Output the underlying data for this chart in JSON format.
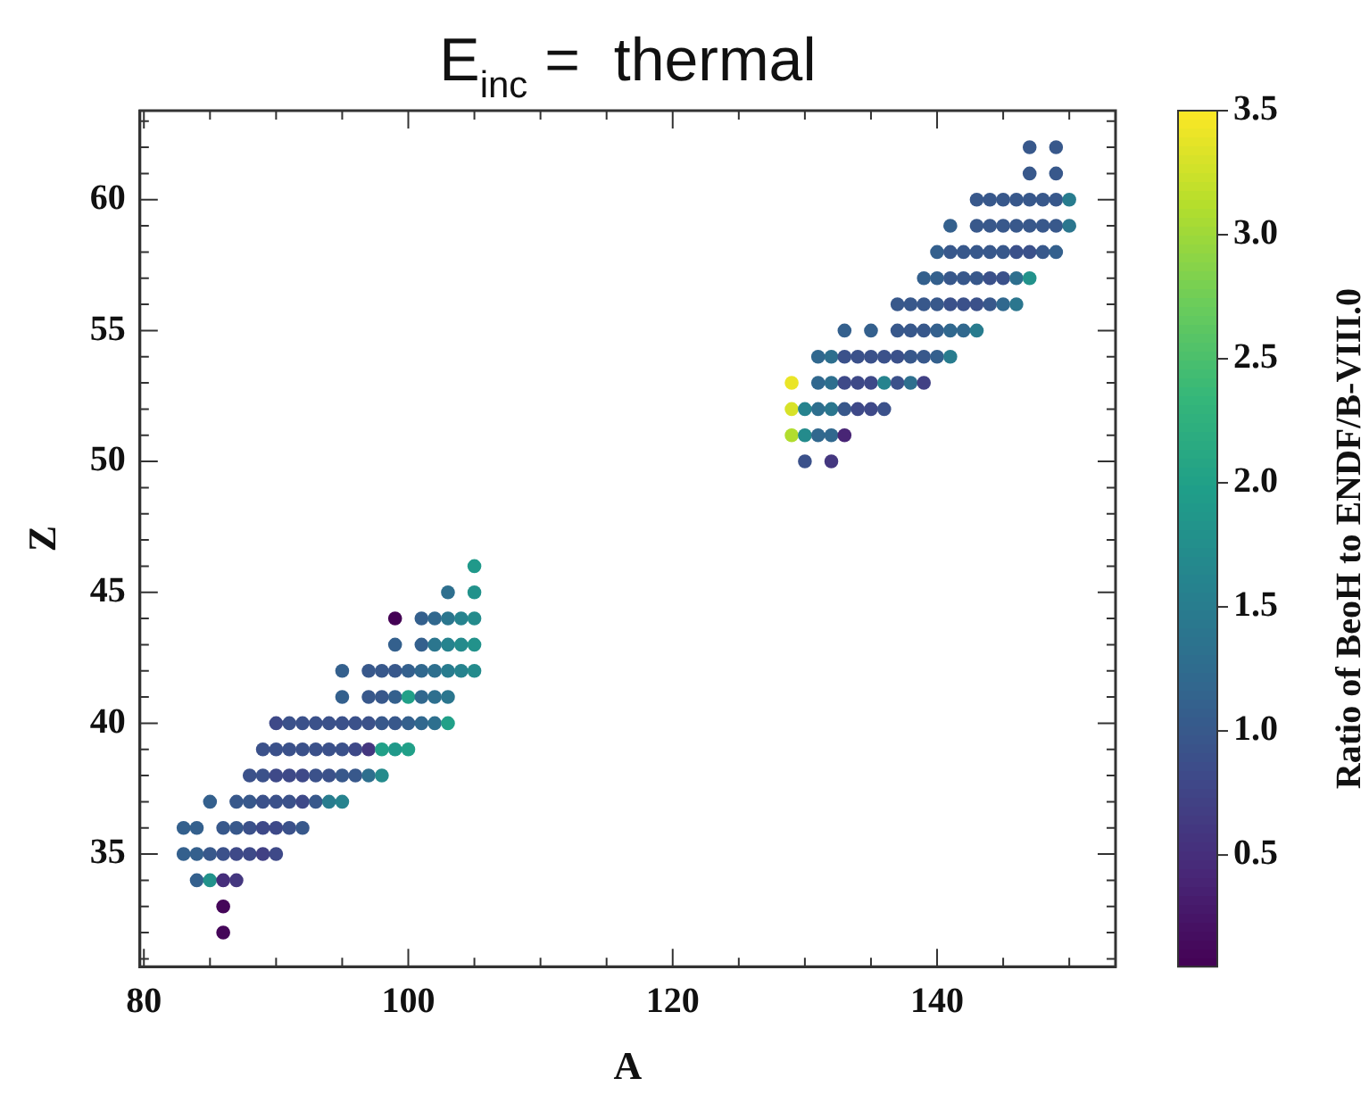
{
  "chart_data": {
    "type": "scatter",
    "title": "E$_{inc}$ =  thermal",
    "xlabel": "A",
    "ylabel": "Z",
    "clabel": "Ratio of BeoH to ENDF/B-VIII.0",
    "xlim": [
      79.7,
      153.5
    ],
    "xticks": [
      80,
      {
        "value": 85,
        "label": null
      },
      {
        "value": 90,
        "label": null
      },
      {
        "value": 95,
        "label": null
      },
      100,
      {
        "value": 105,
        "label": null
      },
      {
        "value": 110,
        "label": null
      },
      {
        "value": 115,
        "label": null
      },
      120,
      {
        "value": 125,
        "label": null
      },
      {
        "value": 130,
        "label": null
      },
      {
        "value": 135,
        "label": null
      },
      140,
      {
        "value": 145,
        "label": null
      },
      {
        "value": 150,
        "label": null
      }
    ],
    "ylim": [
      30.7,
      63.4
    ],
    "yticks": [
      {
        "value": 31,
        "label": null
      },
      {
        "value": 32,
        "label": null
      },
      {
        "value": 33,
        "label": null
      },
      {
        "value": 34,
        "label": null
      },
      35,
      {
        "value": 36,
        "label": null
      },
      {
        "value": 37,
        "label": null
      },
      {
        "value": 38,
        "label": null
      },
      {
        "value": 39,
        "label": null
      },
      40,
      {
        "value": 41,
        "label": null
      },
      {
        "value": 42,
        "label": null
      },
      {
        "value": 43,
        "label": null
      },
      {
        "value": 44,
        "label": null
      },
      45,
      {
        "value": 46,
        "label": null
      },
      {
        "value": 47,
        "label": null
      },
      {
        "value": 48,
        "label": null
      },
      {
        "value": 49,
        "label": null
      },
      50,
      {
        "value": 51,
        "label": null
      },
      {
        "value": 52,
        "label": null
      },
      {
        "value": 53,
        "label": null
      },
      {
        "value": 54,
        "label": null
      },
      55,
      {
        "value": 56,
        "label": null
      },
      {
        "value": 57,
        "label": null
      },
      {
        "value": 58,
        "label": null
      },
      {
        "value": 59,
        "label": null
      },
      60,
      {
        "value": 61,
        "label": null
      },
      {
        "value": 62,
        "label": null
      },
      {
        "value": 63,
        "label": null
      }
    ],
    "clim": [
      0.05,
      3.5
    ],
    "cticks": [
      0.5,
      {
        "value": 1,
        "label": "1.0"
      },
      1.5,
      {
        "value": 2,
        "label": "2.0"
      },
      2.5,
      {
        "value": 3,
        "label": "3.0"
      },
      3.5
    ],
    "marker": "circle",
    "grid": false,
    "legend": false,
    "x": [
      86,
      86,
      84,
      85,
      86,
      87,
      83,
      84,
      85,
      86,
      87,
      88,
      89,
      90,
      83,
      84,
      86,
      87,
      88,
      89,
      90,
      91,
      92,
      85,
      87,
      88,
      89,
      90,
      91,
      92,
      93,
      94,
      95,
      88,
      89,
      90,
      91,
      92,
      93,
      94,
      95,
      96,
      97,
      98,
      89,
      90,
      91,
      92,
      93,
      94,
      95,
      96,
      97,
      98,
      99,
      100,
      90,
      91,
      92,
      93,
      94,
      95,
      96,
      97,
      98,
      99,
      100,
      101,
      102,
      103,
      95,
      97,
      98,
      99,
      100,
      101,
      102,
      103,
      95,
      97,
      98,
      99,
      100,
      101,
      102,
      103,
      104,
      105,
      99,
      101,
      102,
      103,
      104,
      105,
      99,
      101,
      102,
      103,
      104,
      105,
      103,
      105,
      105,
      130,
      132,
      129,
      130,
      131,
      132,
      133,
      129,
      130,
      131,
      132,
      133,
      134,
      135,
      136,
      129,
      131,
      132,
      133,
      134,
      135,
      136,
      137,
      138,
      139,
      131,
      132,
      133,
      134,
      135,
      136,
      137,
      138,
      139,
      140,
      141,
      133,
      135,
      137,
      138,
      139,
      140,
      141,
      142,
      143,
      137,
      138,
      139,
      140,
      141,
      142,
      143,
      144,
      145,
      146,
      139,
      140,
      141,
      142,
      143,
      144,
      145,
      146,
      147,
      140,
      141,
      142,
      143,
      144,
      145,
      146,
      147,
      148,
      149,
      141,
      143,
      144,
      145,
      146,
      147,
      148,
      149,
      150,
      143,
      144,
      145,
      146,
      147,
      148,
      149,
      150,
      147,
      149,
      147,
      149
    ],
    "values": [
      32,
      33,
      34,
      34,
      34,
      34,
      35,
      35,
      35,
      35,
      35,
      35,
      35,
      35,
      36,
      36,
      36,
      36,
      36,
      36,
      36,
      36,
      36,
      37,
      37,
      37,
      37,
      37,
      37,
      37,
      37,
      37,
      37,
      38,
      38,
      38,
      38,
      38,
      38,
      38,
      38,
      38,
      38,
      38,
      39,
      39,
      39,
      39,
      39,
      39,
      39,
      39,
      39,
      39,
      39,
      39,
      40,
      40,
      40,
      40,
      40,
      40,
      40,
      40,
      40,
      40,
      40,
      40,
      40,
      40,
      41,
      41,
      41,
      41,
      41,
      41,
      41,
      41,
      42,
      42,
      42,
      42,
      42,
      42,
      42,
      42,
      42,
      42,
      43,
      43,
      43,
      43,
      43,
      43,
      44,
      44,
      44,
      44,
      44,
      44,
      45,
      45,
      46,
      50,
      50,
      51,
      51,
      51,
      51,
      51,
      52,
      52,
      52,
      52,
      52,
      52,
      52,
      52,
      53,
      53,
      53,
      53,
      53,
      53,
      53,
      53,
      53,
      53,
      54,
      54,
      54,
      54,
      54,
      54,
      54,
      54,
      54,
      54,
      54,
      55,
      55,
      55,
      55,
      55,
      55,
      55,
      55,
      55,
      56,
      56,
      56,
      56,
      56,
      56,
      56,
      56,
      56,
      56,
      57,
      57,
      57,
      57,
      57,
      57,
      57,
      57,
      57,
      58,
      58,
      58,
      58,
      58,
      58,
      58,
      58,
      58,
      58,
      59,
      59,
      59,
      59,
      59,
      59,
      59,
      59,
      59,
      60,
      60,
      60,
      60,
      60,
      60,
      60,
      60,
      61,
      61,
      62,
      62
    ],
    "cvalues": [
      0.1,
      0.1,
      1.1,
      1.8,
      0.5,
      0.6,
      1.1,
      1.1,
      1.0,
      0.9,
      0.8,
      0.8,
      0.7,
      0.8,
      1.1,
      1.1,
      1.0,
      1.0,
      0.9,
      0.8,
      0.8,
      0.9,
      1.0,
      1.1,
      1.0,
      1.0,
      0.9,
      0.9,
      0.9,
      0.8,
      1.0,
      1.5,
      1.6,
      0.9,
      0.9,
      0.8,
      0.8,
      0.8,
      0.9,
      0.9,
      1.0,
      1.0,
      1.3,
      1.7,
      0.9,
      0.9,
      0.9,
      0.9,
      0.9,
      0.9,
      0.9,
      0.8,
      0.6,
      2.0,
      1.9,
      2.0,
      0.8,
      0.9,
      0.9,
      0.9,
      0.9,
      0.9,
      0.9,
      0.9,
      1.0,
      1.0,
      1.1,
      1.2,
      1.3,
      2.0,
      1.1,
      1.0,
      1.0,
      1.1,
      2.0,
      1.2,
      1.3,
      1.4,
      1.1,
      1.0,
      1.0,
      1.0,
      1.1,
      1.2,
      1.3,
      1.5,
      1.6,
      1.7,
      1.1,
      1.1,
      1.4,
      1.6,
      1.7,
      1.8,
      0.05,
      1.1,
      1.2,
      1.4,
      1.6,
      1.7,
      1.3,
      1.8,
      1.9,
      0.9,
      0.6,
      3.1,
      1.7,
      1.2,
      1.2,
      0.4,
      3.3,
      1.6,
      1.3,
      1.4,
      1.0,
      0.8,
      0.8,
      0.9,
      3.4,
      1.2,
      1.3,
      0.8,
      0.8,
      0.8,
      1.6,
      0.9,
      1.3,
      0.7,
      1.2,
      1.3,
      0.9,
      0.9,
      0.9,
      0.9,
      0.9,
      1.0,
      1.0,
      1.1,
      1.5,
      1.1,
      1.1,
      1.0,
      1.0,
      1.0,
      1.1,
      1.2,
      1.2,
      1.5,
      1.0,
      1.0,
      1.0,
      1.0,
      0.9,
      0.9,
      0.9,
      1.0,
      1.2,
      1.4,
      1.1,
      1.1,
      1.0,
      1.0,
      1.0,
      0.9,
      0.9,
      1.3,
      1.8,
      1.1,
      1.0,
      1.0,
      1.0,
      1.0,
      1.0,
      0.9,
      0.9,
      1.0,
      1.1,
      1.1,
      1.0,
      1.0,
      1.0,
      1.0,
      1.0,
      1.0,
      1.0,
      1.4,
      1.0,
      1.0,
      1.0,
      1.0,
      1.0,
      1.0,
      1.0,
      1.5,
      1.0,
      1.0,
      1.0,
      1.0
    ]
  }
}
